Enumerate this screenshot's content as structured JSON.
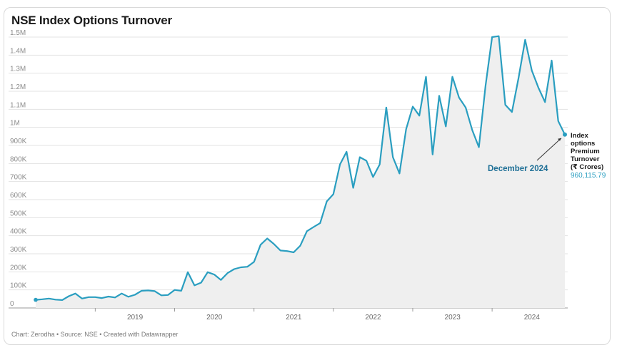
{
  "chart_data": {
    "type": "area",
    "title": "NSE Index Options Turnover",
    "footer": "Chart: Zerodha • Source: NSE • Created with Datawrapper",
    "xlabel": "",
    "ylabel": "",
    "ylim": [
      0,
      1500000
    ],
    "x_range": [
      "2018-04",
      "2024-12"
    ],
    "y_ticks": [
      "0",
      "100K",
      "200K",
      "300K",
      "400K",
      "500K",
      "600K",
      "700K",
      "800K",
      "900K",
      "1M",
      "1.1M",
      "1.2M",
      "1.3M",
      "1.4M",
      "1.5M"
    ],
    "x_ticks": [
      "2019",
      "2020",
      "2021",
      "2022",
      "2023",
      "2024"
    ],
    "grid": true,
    "line_color": "#2a9ec0",
    "fill_color": "#efefef",
    "series": [
      {
        "values": [
          [
            "2018-04",
            45000
          ],
          [
            "2018-05",
            48000
          ],
          [
            "2018-06",
            52000
          ],
          [
            "2018-07",
            46000
          ],
          [
            "2018-08",
            44000
          ],
          [
            "2018-09",
            65000
          ],
          [
            "2018-10",
            80000
          ],
          [
            "2018-11",
            52000
          ],
          [
            "2018-12",
            60000
          ],
          [
            "2019-01",
            60000
          ],
          [
            "2019-02",
            55000
          ],
          [
            "2019-03",
            63000
          ],
          [
            "2019-04",
            58000
          ],
          [
            "2019-05",
            80000
          ],
          [
            "2019-06",
            62000
          ],
          [
            "2019-07",
            73000
          ],
          [
            "2019-08",
            95000
          ],
          [
            "2019-09",
            97000
          ],
          [
            "2019-10",
            93000
          ],
          [
            "2019-11",
            70000
          ],
          [
            "2019-12",
            72000
          ],
          [
            "2020-01",
            100000
          ],
          [
            "2020-02",
            95000
          ],
          [
            "2020-03",
            198000
          ],
          [
            "2020-04",
            125000
          ],
          [
            "2020-05",
            140000
          ],
          [
            "2020-06",
            198000
          ],
          [
            "2020-07",
            185000
          ],
          [
            "2020-08",
            155000
          ],
          [
            "2020-09",
            193000
          ],
          [
            "2020-10",
            215000
          ],
          [
            "2020-11",
            225000
          ],
          [
            "2020-12",
            228000
          ],
          [
            "2021-01",
            255000
          ],
          [
            "2021-02",
            350000
          ],
          [
            "2021-03",
            385000
          ],
          [
            "2021-04",
            355000
          ],
          [
            "2021-05",
            318000
          ],
          [
            "2021-06",
            315000
          ],
          [
            "2021-07",
            308000
          ],
          [
            "2021-08",
            345000
          ],
          [
            "2021-09",
            425000
          ],
          [
            "2021-10",
            448000
          ],
          [
            "2021-11",
            470000
          ],
          [
            "2021-12",
            590000
          ],
          [
            "2022-01",
            630000
          ],
          [
            "2022-02",
            795000
          ],
          [
            "2022-03",
            865000
          ],
          [
            "2022-04",
            665000
          ],
          [
            "2022-05",
            835000
          ],
          [
            "2022-06",
            815000
          ],
          [
            "2022-07",
            725000
          ],
          [
            "2022-08",
            795000
          ],
          [
            "2022-09",
            1110000
          ],
          [
            "2022-10",
            835000
          ],
          [
            "2022-11",
            745000
          ],
          [
            "2022-12",
            990000
          ],
          [
            "2023-01",
            1115000
          ],
          [
            "2023-02",
            1065000
          ],
          [
            "2023-03",
            1280000
          ],
          [
            "2023-04",
            850000
          ],
          [
            "2023-05",
            1175000
          ],
          [
            "2023-06",
            1005000
          ],
          [
            "2023-07",
            1280000
          ],
          [
            "2023-08",
            1165000
          ],
          [
            "2023-09",
            1110000
          ],
          [
            "2023-10",
            985000
          ],
          [
            "2023-11",
            890000
          ],
          [
            "2023-12",
            1230000
          ],
          [
            "2024-01",
            1500000
          ],
          [
            "2024-02",
            1505000
          ],
          [
            "2024-03",
            1125000
          ],
          [
            "2024-04",
            1085000
          ],
          [
            "2024-05",
            1275000
          ],
          [
            "2024-06",
            1485000
          ],
          [
            "2024-07",
            1315000
          ],
          [
            "2024-08",
            1220000
          ],
          [
            "2024-09",
            1140000
          ],
          [
            "2024-10",
            1370000
          ],
          [
            "2024-11",
            1035000
          ],
          [
            "2024-12",
            960115.79
          ]
        ]
      }
    ],
    "annotation": {
      "label_lines": [
        "Index",
        "options",
        "Premium",
        "Turnover",
        "(₹ Crores)"
      ],
      "value": "960,115.79",
      "date": "December 2024"
    }
  }
}
